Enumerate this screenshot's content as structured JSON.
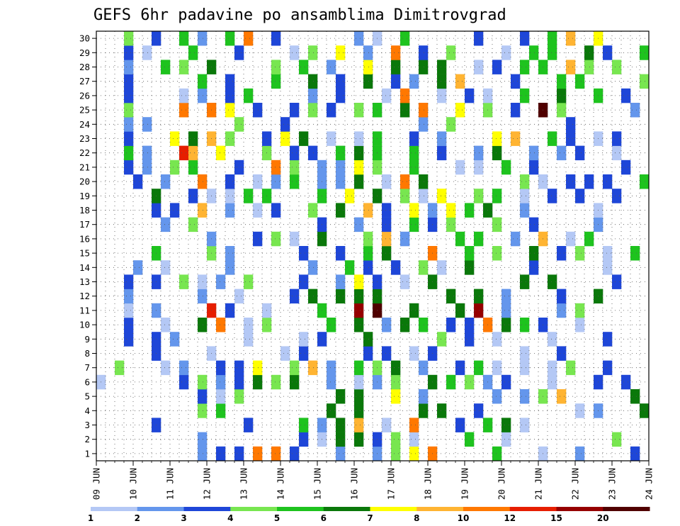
{
  "chart_data": {
    "type": "heatmap",
    "title": "GEFS 6hr padavine po ansamblima Dimitrovgrad",
    "xlabel": "",
    "ylabel": "",
    "x_tick_labels": [
      "09 JUN",
      "10 JUN",
      "11 JUN",
      "12 JUN",
      "13 JUN",
      "14 JUN",
      "15 JUN",
      "16 JUN",
      "17 JUN",
      "18 JUN",
      "19 JUN",
      "20 JUN",
      "21 JUN",
      "22 JUN",
      "23 JUN",
      "24 JUN"
    ],
    "y_tick_labels": [
      "1",
      "2",
      "3",
      "4",
      "5",
      "6",
      "7",
      "8",
      "9",
      "10",
      "11",
      "12",
      "13",
      "14",
      "15",
      "16",
      "17",
      "18",
      "19",
      "20",
      "21",
      "22",
      "23",
      "24",
      "25",
      "26",
      "27",
      "28",
      "29",
      "30"
    ],
    "ylim": [
      0.5,
      30.5
    ],
    "members": 30,
    "time_steps": 60,
    "step_hours": 6,
    "start_date": "09 JUN",
    "grid": true,
    "colorbar": {
      "levels": [
        1,
        2,
        3,
        4,
        5,
        6,
        7,
        8,
        10,
        12,
        15,
        20
      ],
      "level_labels": [
        "1",
        "2",
        "3",
        "4",
        "5",
        "6",
        "7",
        "8",
        "10",
        "12",
        "15",
        "20"
      ],
      "colors": [
        "#b4c8f5",
        "#6496ec",
        "#1e46d8",
        "#78e650",
        "#1ec31e",
        "#0a780a",
        "#ffff00",
        "#ffb432",
        "#ff7800",
        "#e61e00",
        "#960000",
        "#500000"
      ]
    },
    "cell_rows_note": "each row string: one char per 6h step; '.' = below 1 mm, digits/letters = colorbar class index (1..9, a=10, b=11, c=12)",
    "cells": [
      "...........2.3.3.9.9.3....2...2.4.7.9......5....1...2.....3.",
      "...........2..........3.1.6.6.3.4.1.....5...1...........4...",
      "......3.........3.....5.2.6.8..1..9....3..5.6.1.............",
      "...........4.5...........6..6......6.6...3..........1.2....6",
      "...........3.1.4..........6.6...7..2.......2..2.4.8.......6.",
      "1........3.4.2.3.6.4.6...2..1.2.4...6.5.4.2.3....1....3..3..",
      "..4....1.2...3.3.7...4.8.2..5.4.6..2...3.5.1..1..1.4...3.....",
      "......3.....1.......1.3......3.3..1.3.........1...3..........",
      "...3..3.2.......1.....1.3....6.......4..3..1.....1.....3....",
      "...3...1...6.9..1.4......5..6..2.6.5..3.3.9.6.5.3...1.......",
      "...1..2.....a.3...1.....5...b.c...6....6.b..2.....2.4.......",
      "...2.......2...1.....3.6..6.6.6.......6..6..2.....3...6.....",
      "...3..3..4.1.2..4.....3...2.7.3..1..6.........6..6......3...",
      "....2..1......2........2...5.3..3..4.1..6......3.......1....",
      "......5.....4.2.......3...3..5.6....9...5..4...6..3.4..1..5.",
      "............2....3.4.1..6....4.8.2.....5.5...2..8..1.5......",
      ".......2..4.............3...2..3..5.3.4....4...3......2.....",
      "......3.3..8..2..1.3...4..6..8.3..7.2.7.5.6...2.......1.....",
      "......6...3.1.1.5.5.....5..7..6..4.1.7...4.5..1..3..3...3...",
      "....3..2...9..3..1.2.5..2.2.6..1.9.6..........4.1..3.3.3...5",
      "...3.2..4.5....3...9.4..2.2.7.4...5....1.1..5..3.........3.",
      "...5.2...a8..7....4..3.3..5.6.5...5..3...2.6...2..2.3...1...",
      "...3....7.6.8.4...3.7.6..1..1.5...3..2.....7.8...5.3..1.3..",
      "...2.2.........4....3..............2..4............3.......",
      "...4.....9..9.7..3...3.4.3..4.5..6.9...7..4..3..c.4.......2.",
      "...3.....1.2..3.5......2..3....1.9...1..3.1...5...6...5..3..",
      "...3.......5..3....5...6..3..6..3.2..6.8.....3....5.5......4.",
      "...2...5.4..6......4..5..2...7..6..6.6...1.3..5.5..8.4..4....",
      "...3.1....5....3.....1.4..7..2..9..3..4.....1..5.5...6.3...5",
      "...4..3..5.2..5.9..3........2.1..5.......3....3..5.8..7.....5"
    ]
  }
}
